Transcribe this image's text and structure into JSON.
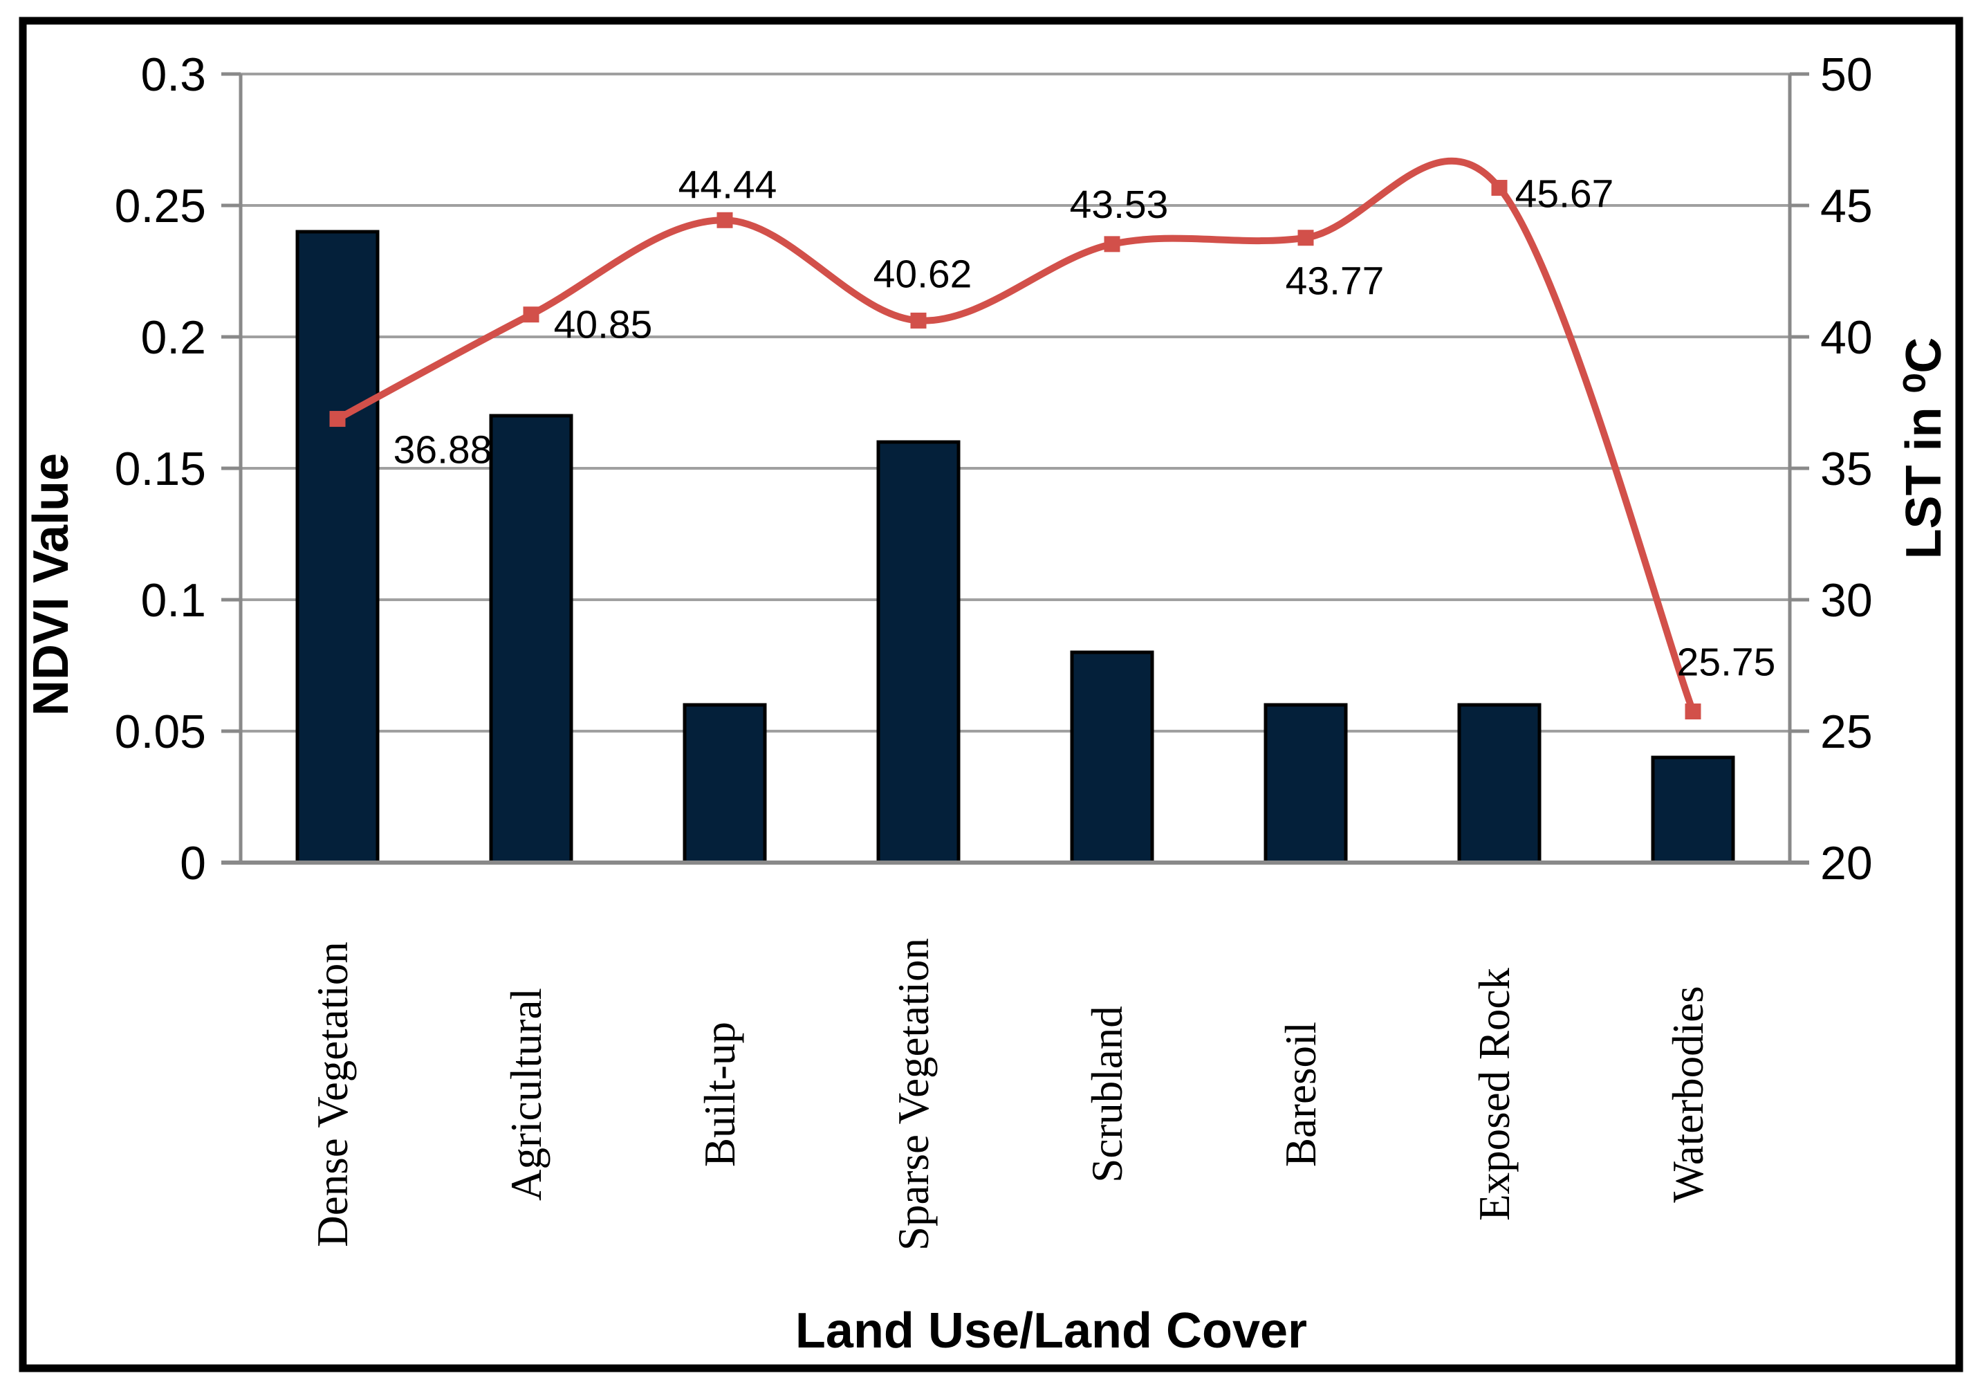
{
  "figure": {
    "background": "#ffffff",
    "border_color": "#000000",
    "gridline_color": "#a0a0a0",
    "axis_line_color": "#898989"
  },
  "chart_data": {
    "type": "combo",
    "title": "",
    "categories": [
      "Dense Vegetation",
      "Agricultural",
      "Built-up",
      "Sparse Vegetation",
      "Scrubland",
      "Baresoil",
      "Exposed Rock",
      "Waterbodies"
    ],
    "xlabel": "Land Use/Land Cover",
    "grid": true,
    "legend": "none",
    "y_left": {
      "title": "NDVI Value",
      "range": [
        0,
        0.3
      ],
      "tick_step": 0.05,
      "ticks": [
        "0",
        "0.05",
        "0.1",
        "0.15",
        "0.2",
        "0.25",
        "0.3"
      ]
    },
    "y_right": {
      "title": "LST in ⁰C",
      "range": [
        20,
        50
      ],
      "tick_step": 5,
      "ticks": [
        "20",
        "25",
        "30",
        "35",
        "40",
        "45",
        "50"
      ]
    },
    "series": [
      {
        "name": "NDVI",
        "type": "bar",
        "axis": "left",
        "color": "#04203a",
        "border_color": "#000000",
        "values": [
          0.24,
          0.17,
          0.06,
          0.16,
          0.08,
          0.06,
          0.06,
          0.04
        ]
      },
      {
        "name": "LST",
        "type": "line",
        "axis": "right",
        "color": "#d2504a",
        "smooth": true,
        "marker": "square",
        "values": [
          36.88,
          40.85,
          44.44,
          40.62,
          43.53,
          43.77,
          45.67,
          25.75
        ],
        "point_labels": [
          "36.88",
          "40.85",
          "44.44",
          "40.62",
          "43.53",
          "43.77",
          "45.67",
          "25.75"
        ],
        "label_offsets": [
          [
            152,
            44
          ],
          [
            104,
            14
          ],
          [
            4,
            -52
          ],
          [
            6,
            -68
          ],
          [
            10,
            -58
          ],
          [
            42,
            62
          ],
          [
            94,
            8
          ],
          [
            48,
            -72
          ]
        ]
      }
    ]
  }
}
